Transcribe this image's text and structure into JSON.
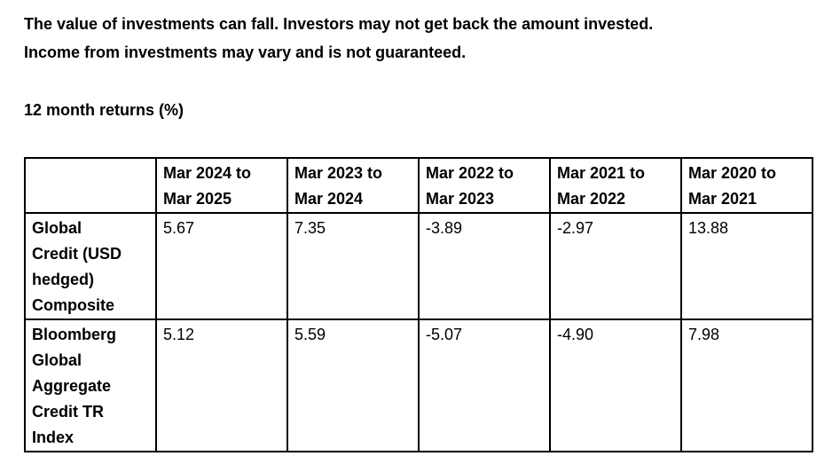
{
  "document": {
    "disclaimer": {
      "line1": "The value of investments can fall. Investors may not get back the amount invested.",
      "line2": "Income from investments may vary and is not guaranteed."
    },
    "section_title": "12 month returns (%)"
  },
  "returns_table": {
    "corner_header": "",
    "column_headers": [
      "Mar 2024 to\nMar 2025",
      "Mar 2023 to\nMar 2024",
      "Mar 2022 to\nMar 2023",
      "Mar 2021 to\nMar 2022",
      "Mar 2020 to\nMar 2021"
    ],
    "rows": [
      {
        "label": "Global\nCredit (USD\nhedged)\nComposite",
        "label_full": "Global Credit (USD hedged) Composite",
        "values": [
          "5.67",
          "7.35",
          "-3.89",
          "-2.97",
          "13.88"
        ]
      },
      {
        "label": "Bloomberg\nGlobal\nAggregate\nCredit TR\nIndex",
        "label_full": "Bloomberg Global Aggregate Credit TR Index",
        "values": [
          "5.12",
          "5.59",
          "-5.07",
          "-4.90",
          "7.98"
        ]
      }
    ],
    "colors": {
      "text": "#000000",
      "border": "#000000",
      "background": "#ffffff"
    }
  }
}
